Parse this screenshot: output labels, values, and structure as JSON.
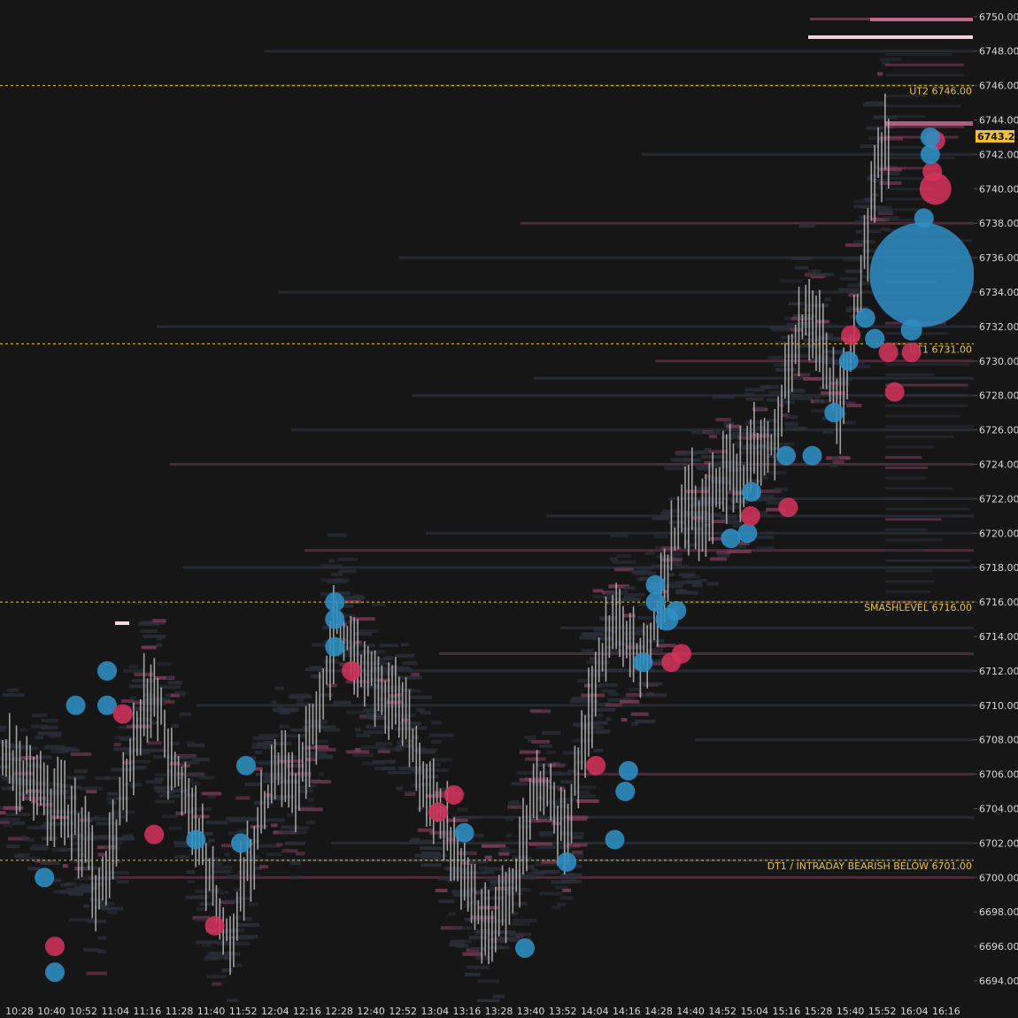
{
  "colors": {
    "background": "#161616",
    "level_line": "#e8c23a",
    "level_text": "#e8c23a",
    "buy_bubble": "#2e8fc4",
    "sell_bubble": "#d2335a",
    "candle": "#b9b9b9",
    "heatmap_low": "#2a2f3a",
    "heatmap_high": "#7d3a58",
    "current_price_bg": "#f2c12e",
    "axis_text": "#d8d8d8"
  },
  "chart_data": {
    "type": "line",
    "y_axis": {
      "range": [
        6693,
        6751
      ],
      "tick_values": [
        6694,
        6696,
        6698,
        6700,
        6702,
        6704,
        6706,
        6708,
        6710,
        6712,
        6714,
        6716,
        6718,
        6720,
        6722,
        6724,
        6726,
        6728,
        6730,
        6732,
        6734,
        6736,
        6738,
        6740,
        6742,
        6744,
        6746,
        6748,
        6750
      ],
      "tick_labels": [
        "6694.00",
        "6696.00",
        "6698.00",
        "6700.00",
        "6702.00",
        "6704.00",
        "6706.00",
        "6708.00",
        "6710.00",
        "6712.00",
        "6714.00",
        "6716.00",
        "6718.00",
        "6720.00",
        "6722.00",
        "6724.00",
        "6726.00",
        "6728.00",
        "6730.00",
        "6732.00",
        "6734.00",
        "6736.00",
        "6738.00",
        "6740.00",
        "6742.00",
        "6744.00",
        "6746.00",
        "6748.00",
        "6750.00"
      ]
    },
    "x_axis": {
      "tick_labels": [
        "10:28",
        "10:40",
        "10:52",
        "11:04",
        "11:16",
        "11:28",
        "11:40",
        "11:52",
        "12:04",
        "12:16",
        "12:28",
        "12:40",
        "12:52",
        "13:04",
        "13:16",
        "13:28",
        "13:40",
        "13:52",
        "14:04",
        "14:16",
        "14:28",
        "14:40",
        "14:52",
        "15:04",
        "15:16",
        "15:28",
        "15:40",
        "15:52",
        "16:04",
        "16:16"
      ]
    },
    "current_price": "6743.25",
    "levels": [
      {
        "name": "UT2",
        "value": "6746.00",
        "price": 6746
      },
      {
        "name": "UT1",
        "value": "6731.00",
        "price": 6731
      },
      {
        "name": "SMASHLEVEL",
        "value": "6716.00",
        "price": 6716
      },
      {
        "name": "DT1 / INTRADAY BEARISH BELOW",
        "value": "6701.00",
        "price": 6701
      }
    ],
    "price_path": [
      [
        0,
        6707
      ],
      [
        3,
        6705
      ],
      [
        6,
        6704
      ],
      [
        8,
        6702
      ],
      [
        9,
        6699
      ],
      [
        10,
        6701
      ],
      [
        11,
        6703
      ],
      [
        12,
        6706
      ],
      [
        13,
        6709
      ],
      [
        14,
        6711
      ],
      [
        15,
        6710
      ],
      [
        16,
        6707
      ],
      [
        17,
        6706
      ],
      [
        18,
        6704
      ],
      [
        19,
        6702
      ],
      [
        20,
        6700
      ],
      [
        21,
        6697
      ],
      [
        22,
        6697
      ],
      [
        23,
        6700
      ],
      [
        24,
        6702
      ],
      [
        25,
        6704
      ],
      [
        26,
        6706
      ],
      [
        27,
        6706
      ],
      [
        28,
        6705
      ],
      [
        29,
        6707
      ],
      [
        30,
        6709
      ],
      [
        31,
        6712
      ],
      [
        32,
        6715
      ],
      [
        33,
        6714
      ],
      [
        34,
        6712
      ],
      [
        35,
        6712
      ],
      [
        36,
        6711
      ],
      [
        37,
        6710
      ],
      [
        38,
        6710
      ],
      [
        39,
        6708
      ],
      [
        40,
        6706
      ],
      [
        41,
        6705
      ],
      [
        42,
        6704
      ],
      [
        43,
        6702
      ],
      [
        44,
        6700
      ],
      [
        45,
        6699
      ],
      [
        46,
        6697
      ],
      [
        47,
        6697
      ],
      [
        48,
        6699
      ],
      [
        49,
        6700
      ],
      [
        50,
        6702
      ],
      [
        51,
        6705
      ],
      [
        52,
        6705
      ],
      [
        53,
        6703
      ],
      [
        54,
        6703
      ],
      [
        55,
        6706
      ],
      [
        56,
        6709
      ],
      [
        57,
        6712
      ],
      [
        58,
        6714
      ],
      [
        59,
        6715
      ],
      [
        60,
        6713
      ],
      [
        61,
        6713
      ],
      [
        62,
        6714
      ],
      [
        63,
        6716
      ],
      [
        64,
        6719
      ],
      [
        65,
        6721
      ],
      [
        66,
        6722
      ],
      [
        67,
        6721
      ],
      [
        68,
        6722
      ],
      [
        69,
        6723
      ],
      [
        70,
        6724
      ],
      [
        71,
        6723
      ],
      [
        72,
        6725
      ],
      [
        73,
        6724
      ],
      [
        74,
        6726
      ],
      [
        75,
        6729
      ],
      [
        76,
        6731
      ],
      [
        77,
        6733
      ],
      [
        78,
        6732
      ],
      [
        79,
        6729
      ],
      [
        80,
        6727
      ],
      [
        81,
        6730
      ],
      [
        82,
        6734
      ],
      [
        83,
        6738
      ],
      [
        84,
        6742
      ],
      [
        85,
        6743.25
      ]
    ],
    "bubbles": [
      {
        "t": 4,
        "p": 6700,
        "side": "buy",
        "r": 11
      },
      {
        "t": 5,
        "p": 6696,
        "side": "sell",
        "r": 11
      },
      {
        "t": 5,
        "p": 6694.5,
        "side": "buy",
        "r": 11
      },
      {
        "t": 7,
        "p": 6710,
        "side": "buy",
        "r": 11
      },
      {
        "t": 10,
        "p": 6712,
        "side": "buy",
        "r": 11
      },
      {
        "t": 10,
        "p": 6710,
        "side": "buy",
        "r": 11
      },
      {
        "t": 11.5,
        "p": 6709.5,
        "side": "sell",
        "r": 11
      },
      {
        "t": 14.5,
        "p": 6702.5,
        "side": "sell",
        "r": 11
      },
      {
        "t": 18.5,
        "p": 6702.2,
        "side": "buy",
        "r": 11
      },
      {
        "t": 20.3,
        "p": 6697.2,
        "side": "sell",
        "r": 11
      },
      {
        "t": 22.8,
        "p": 6702,
        "side": "buy",
        "r": 11
      },
      {
        "t": 23.3,
        "p": 6706.5,
        "side": "buy",
        "r": 11
      },
      {
        "t": 31.8,
        "p": 6716,
        "side": "buy",
        "r": 11
      },
      {
        "t": 31.8,
        "p": 6715,
        "side": "buy",
        "r": 11
      },
      {
        "t": 31.8,
        "p": 6713.4,
        "side": "buy",
        "r": 11
      },
      {
        "t": 33.4,
        "p": 6712,
        "side": "sell",
        "r": 11
      },
      {
        "t": 41.7,
        "p": 6703.8,
        "side": "sell",
        "r": 11
      },
      {
        "t": 43.2,
        "p": 6704.8,
        "side": "sell",
        "r": 11
      },
      {
        "t": 44.2,
        "p": 6702.6,
        "side": "buy",
        "r": 11
      },
      {
        "t": 50,
        "p": 6695.9,
        "side": "buy",
        "r": 11
      },
      {
        "t": 54,
        "p": 6700.9,
        "side": "buy",
        "r": 11
      },
      {
        "t": 56.8,
        "p": 6706.5,
        "side": "sell",
        "r": 11
      },
      {
        "t": 58.6,
        "p": 6702.2,
        "side": "buy",
        "r": 11
      },
      {
        "t": 59.9,
        "p": 6706.2,
        "side": "buy",
        "r": 11
      },
      {
        "t": 59.6,
        "p": 6705,
        "side": "buy",
        "r": 11
      },
      {
        "t": 61.3,
        "p": 6712.5,
        "side": "buy",
        "r": 11
      },
      {
        "t": 62.5,
        "p": 6717,
        "side": "buy",
        "r": 11
      },
      {
        "t": 62.5,
        "p": 6716,
        "side": "buy",
        "r": 11
      },
      {
        "t": 63.6,
        "p": 6715,
        "side": "buy",
        "r": 13
      },
      {
        "t": 64.5,
        "p": 6715.5,
        "side": "buy",
        "r": 11
      },
      {
        "t": 64,
        "p": 6712.5,
        "side": "sell",
        "r": 11
      },
      {
        "t": 65,
        "p": 6713,
        "side": "sell",
        "r": 11
      },
      {
        "t": 69.7,
        "p": 6719.7,
        "side": "buy",
        "r": 11
      },
      {
        "t": 71.3,
        "p": 6720,
        "side": "buy",
        "r": 11
      },
      {
        "t": 71.7,
        "p": 6722.4,
        "side": "buy",
        "r": 11
      },
      {
        "t": 71.6,
        "p": 6721,
        "side": "sell",
        "r": 11
      },
      {
        "t": 75.2,
        "p": 6721.5,
        "side": "sell",
        "r": 11
      },
      {
        "t": 75,
        "p": 6724.5,
        "side": "buy",
        "r": 11
      },
      {
        "t": 77.5,
        "p": 6724.5,
        "side": "buy",
        "r": 11
      },
      {
        "t": 79.6,
        "p": 6727,
        "side": "buy",
        "r": 11
      },
      {
        "t": 81.2,
        "p": 6731.5,
        "side": "sell",
        "r": 11
      },
      {
        "t": 81,
        "p": 6730,
        "side": "buy",
        "r": 11
      },
      {
        "t": 82.6,
        "p": 6732.5,
        "side": "buy",
        "r": 11
      },
      {
        "t": 83.5,
        "p": 6731.3,
        "side": "buy",
        "r": 11
      },
      {
        "t": 84.8,
        "p": 6730.5,
        "side": "sell",
        "r": 11
      },
      {
        "t": 85.4,
        "p": 6728.2,
        "side": "sell",
        "r": 11
      },
      {
        "t": 87,
        "p": 6731.8,
        "side": "buy",
        "r": 12
      },
      {
        "t": 87,
        "p": 6730.5,
        "side": "sell",
        "r": 11
      },
      {
        "t": 88,
        "p": 6735,
        "side": "buy",
        "r": 59
      },
      {
        "t": 88.2,
        "p": 6738.3,
        "side": "buy",
        "r": 11
      },
      {
        "t": 89.3,
        "p": 6740,
        "side": "sell",
        "r": 18
      },
      {
        "t": 89,
        "p": 6741,
        "side": "sell",
        "r": 11
      },
      {
        "t": 89.3,
        "p": 6742.8,
        "side": "sell",
        "r": 11
      },
      {
        "t": 88.8,
        "p": 6743,
        "side": "buy",
        "r": 11
      },
      {
        "t": 88.8,
        "p": 6742,
        "side": "buy",
        "r": 11
      }
    ]
  }
}
